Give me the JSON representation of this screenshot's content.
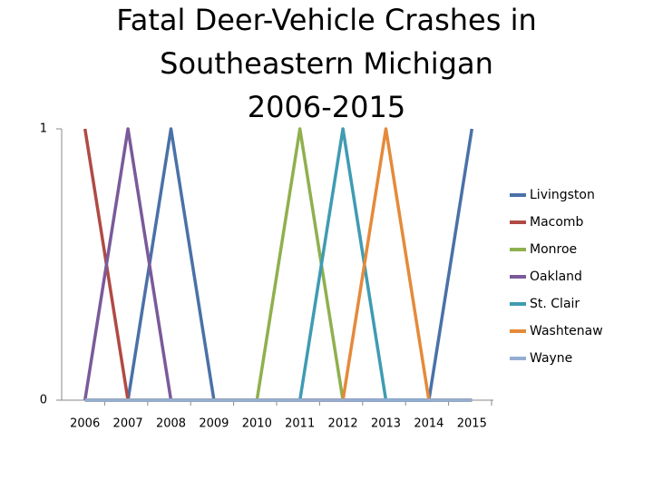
{
  "chart_data": {
    "type": "line",
    "title": [
      "Fatal Deer-Vehicle Crashes in",
      "Southeastern Michigan",
      "2006-2015"
    ],
    "categories": [
      "2006",
      "2007",
      "2008",
      "2009",
      "2010",
      "2011",
      "2012",
      "2013",
      "2014",
      "2015"
    ],
    "series": [
      {
        "name": "Livingston",
        "color": "#4a71a8",
        "values": [
          0,
          0,
          1,
          0,
          0,
          0,
          0,
          0,
          0,
          1
        ]
      },
      {
        "name": "Macomb",
        "color": "#b04a45",
        "values": [
          1,
          0,
          0,
          0,
          0,
          0,
          0,
          0,
          0,
          0
        ]
      },
      {
        "name": "Monroe",
        "color": "#8fb04e",
        "values": [
          0,
          0,
          0,
          0,
          0,
          1,
          0,
          0,
          0,
          0
        ]
      },
      {
        "name": "Oakland",
        "color": "#7a5a9a",
        "values": [
          0,
          1,
          0,
          0,
          0,
          0,
          0,
          0,
          0,
          0
        ]
      },
      {
        "name": "St. Clair",
        "color": "#3f9bb3",
        "values": [
          0,
          0,
          0,
          0,
          0,
          0,
          1,
          0,
          0,
          0
        ]
      },
      {
        "name": "Washtenaw",
        "color": "#e58a3a",
        "values": [
          0,
          0,
          0,
          0,
          0,
          0,
          0,
          1,
          0,
          0
        ]
      },
      {
        "name": "Wayne",
        "color": "#93aed3",
        "values": [
          0,
          0,
          0,
          0,
          0,
          0,
          0,
          0,
          0,
          0
        ]
      }
    ],
    "ylim": [
      0,
      1
    ],
    "yticks": [
      0,
      1
    ],
    "grid": false,
    "legend": "right"
  }
}
